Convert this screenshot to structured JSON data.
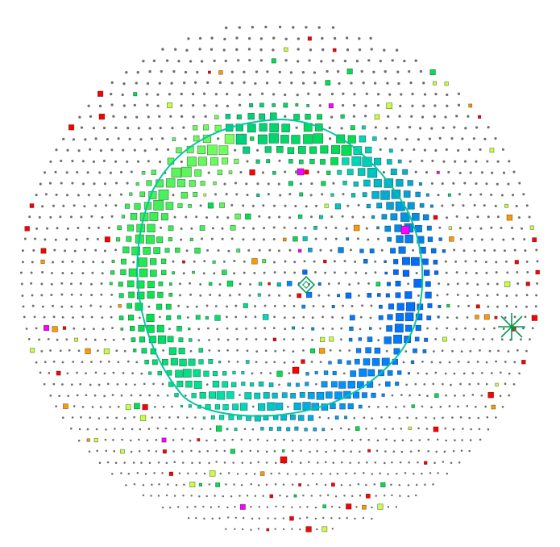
{
  "display": {
    "type": "event-display",
    "view": "detector-unrolled-sphere",
    "background": "#ffffff",
    "empty_pmt_color": "#6d6d6d",
    "hit_pmt_outline": "#333333"
  },
  "colors": {
    "early": "#0066ff",
    "mid": "#00e0b0",
    "main": "#00e050",
    "late": "#c8ff40",
    "outlier_red": "#ff0000",
    "outlier_orange": "#ff9900",
    "outlier_magenta": "#ff00ff",
    "ring": "#00c8a0",
    "marker": "#009a55"
  },
  "icons": {
    "fit-vertex-marker": "diamond",
    "direction-marker": "crosshair"
  },
  "ring": {
    "present": true
  }
}
